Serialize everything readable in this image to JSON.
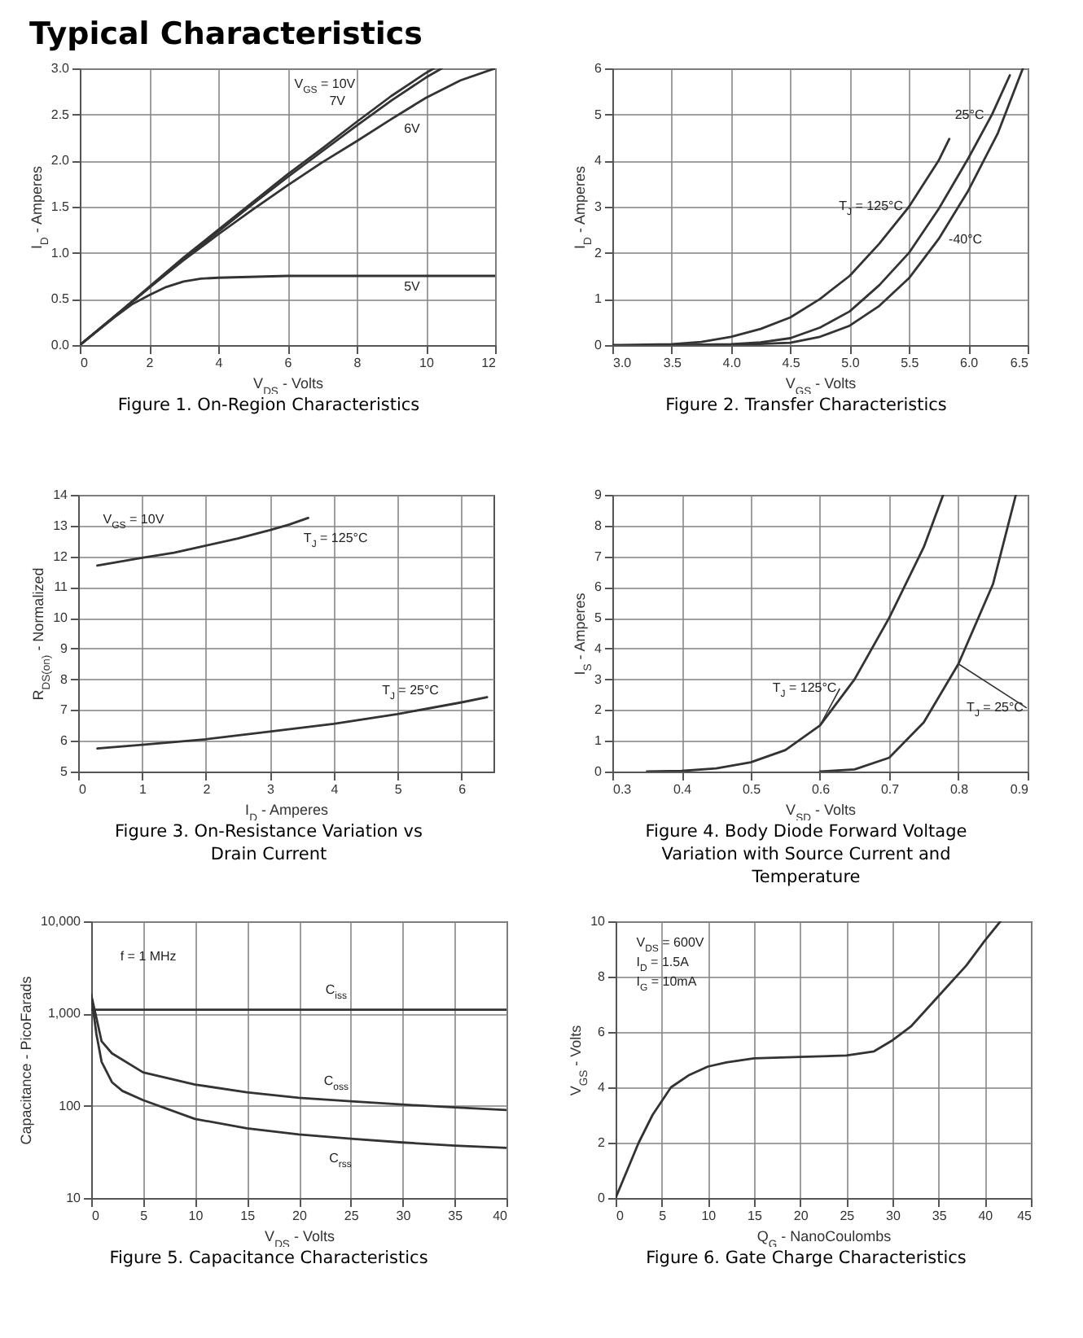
{
  "chart_data": [
    {
      "type": "line",
      "title": "Figure 1. On-Region Characteristics",
      "annotations": [
        "Typical Characteristics"
      ],
      "xlabel": "V$_{DS}$ - Volts",
      "ylabel": "I$_{D}$ - Amperes",
      "xlim": [
        0,
        12
      ],
      "ylim": [
        0,
        3
      ],
      "xticks": [
        0,
        2,
        4,
        6,
        8,
        10,
        12
      ],
      "yticks": [
        {
          "value": 0,
          "label": "0.0"
        },
        0.5,
        {
          "value": 1,
          "label": "1.0"
        },
        1.5,
        {
          "value": 2,
          "label": "2.0"
        },
        2.5,
        {
          "value": 3,
          "label": "3.0"
        }
      ],
      "grid": true,
      "series": [
        {
          "name": "V$_{GS}$ = 10V",
          "color": "#333333",
          "x": [
            0,
            1,
            2,
            3,
            4,
            5,
            6,
            7,
            8,
            9,
            10,
            10.23
          ],
          "values": [
            0,
            0.31,
            0.63,
            0.95,
            1.25,
            1.55,
            1.85,
            2.13,
            2.42,
            2.7,
            2.95,
            3.0
          ]
        },
        {
          "name": "7V",
          "color": "#333333",
          "x": [
            0,
            1,
            2,
            3,
            4,
            5,
            6,
            7,
            8,
            9,
            10,
            10.46
          ],
          "values": [
            0,
            0.31,
            0.62,
            0.93,
            1.23,
            1.53,
            1.82,
            2.1,
            2.38,
            2.65,
            2.9,
            3.0
          ]
        },
        {
          "name": "6V",
          "color": "#333333",
          "x": [
            0,
            1,
            2,
            3,
            4,
            5,
            6,
            7,
            8,
            9,
            10,
            11,
            12
          ],
          "values": [
            0,
            0.31,
            0.62,
            0.92,
            1.2,
            1.47,
            1.73,
            1.98,
            2.21,
            2.45,
            2.68,
            2.87,
            3.0
          ]
        },
        {
          "name": "5V",
          "color": "#333333",
          "x": [
            0,
            1,
            1.5,
            2,
            2.5,
            3,
            3.5,
            4,
            6,
            12
          ],
          "values": [
            0,
            0.3,
            0.44,
            0.54,
            0.63,
            0.69,
            0.72,
            0.73,
            0.75,
            0.75
          ]
        }
      ]
    },
    {
      "type": "line",
      "title": "Figure 2. Transfer Characteristics",
      "xlabel": "V$_{GS}$ - Volts",
      "ylabel": "I$_{D}$ - Amperes",
      "xlim": [
        3,
        6.5
      ],
      "ylim": [
        0,
        6
      ],
      "xticks": [
        {
          "value": 3,
          "label": "3.0"
        },
        3.5,
        {
          "value": 4,
          "label": "4.0"
        },
        4.5,
        {
          "value": 5,
          "label": "5.0"
        },
        5.5,
        {
          "value": 6,
          "label": "6.0"
        },
        6.5
      ],
      "yticks": [
        0,
        1,
        2,
        3,
        4,
        5,
        6
      ],
      "grid": true,
      "series": [
        {
          "name": "T$_{J}$ = 125°C",
          "color": "#333333",
          "x": [
            3,
            3.5,
            3.75,
            4,
            4.25,
            4.5,
            4.75,
            5,
            5.25,
            5.5,
            5.75,
            5.84
          ],
          "values": [
            0,
            0.02,
            0.07,
            0.18,
            0.35,
            0.6,
            1.0,
            1.5,
            2.2,
            3.0,
            4.0,
            4.47
          ]
        },
        {
          "name": "25°C",
          "color": "#333333",
          "x": [
            3.5,
            4,
            4.25,
            4.5,
            4.75,
            5,
            5.25,
            5.5,
            5.75,
            6,
            6.2,
            6.35
          ],
          "values": [
            0,
            0.02,
            0.06,
            0.15,
            0.38,
            0.73,
            1.3,
            2.0,
            2.95,
            4.05,
            5.0,
            5.85
          ]
        },
        {
          "name": "-40°C",
          "color": "#333333",
          "x": [
            4,
            4.5,
            4.75,
            5,
            5.25,
            5.5,
            5.75,
            6,
            6.25,
            6.46
          ],
          "values": [
            0,
            0.05,
            0.18,
            0.42,
            0.85,
            1.45,
            2.3,
            3.35,
            4.6,
            6.0
          ]
        }
      ]
    },
    {
      "type": "line",
      "title": "Figure 3. On-Resistance Variation vs Drain Current",
      "annotations": [
        "V$_{GS}$ = 10V"
      ],
      "xlabel": "I$_{D}$ - Amperes",
      "ylabel": "R$_{DS(on)}$ - Normalized",
      "xlim": [
        0,
        6.5
      ],
      "ylim": [
        5,
        14
      ],
      "xticks": [
        0,
        1,
        2,
        3,
        4,
        5,
        6
      ],
      "yticks": [
        5,
        6,
        7,
        8,
        9,
        10,
        11,
        12,
        13,
        14
      ],
      "grid": true,
      "series": [
        {
          "name": "T$_{J}$ = 125°C",
          "color": "#333333",
          "x": [
            0.3,
            1,
            1.5,
            2,
            2.5,
            3,
            3.3,
            3.6
          ],
          "values": [
            11.7,
            11.95,
            12.12,
            12.35,
            12.58,
            12.85,
            13.03,
            13.25
          ]
        },
        {
          "name": "T$_{J}$ = 25°C",
          "color": "#333333",
          "x": [
            0.3,
            1,
            2,
            3,
            4,
            5,
            6,
            6.4
          ],
          "values": [
            5.75,
            5.87,
            6.05,
            6.3,
            6.55,
            6.87,
            7.25,
            7.42
          ]
        }
      ]
    },
    {
      "type": "line",
      "title": "Figure 4. Body Diode Forward Voltage Variation with Source Current and Temperature",
      "xlabel": "V$_{SD}$ - Volts",
      "ylabel": "I$_{S}$ - Amperes",
      "xlim": [
        0.3,
        0.9
      ],
      "ylim": [
        0,
        9
      ],
      "xticks": [
        0.3,
        0.4,
        0.5,
        0.6,
        0.7,
        0.8,
        0.9
      ],
      "yticks": [
        0,
        1,
        2,
        3,
        4,
        5,
        6,
        7,
        8,
        9
      ],
      "grid": true,
      "series": [
        {
          "name": "T$_{J}$ = 125°C",
          "color": "#333333",
          "x": [
            0.35,
            0.4,
            0.45,
            0.5,
            0.55,
            0.6,
            0.65,
            0.7,
            0.75,
            0.778
          ],
          "values": [
            0,
            0.02,
            0.1,
            0.3,
            0.7,
            1.5,
            3.0,
            5.0,
            7.3,
            9
          ]
        },
        {
          "name": "T$_{J}$ = 25°C",
          "color": "#333333",
          "x": [
            0.6,
            0.65,
            0.7,
            0.75,
            0.8,
            0.85,
            0.883
          ],
          "values": [
            0,
            0.07,
            0.45,
            1.6,
            3.5,
            6.1,
            9
          ]
        }
      ]
    },
    {
      "type": "line",
      "title": "Figure 5. Capacitance Characteristics",
      "annotations": [
        "f = 1 MHz"
      ],
      "xlabel": "V$_{DS}$ - Volts",
      "ylabel": "Capacitance - PicoFarads",
      "log": true,
      "xlim": [
        0,
        40
      ],
      "ylim": [
        10,
        10000
      ],
      "xticks": [
        0,
        5,
        10,
        15,
        20,
        25,
        30,
        35,
        40
      ],
      "yticks": [
        10,
        100,
        {
          "value": 1000,
          "label": "1,000"
        },
        {
          "value": 10000,
          "label": "10,000"
        }
      ],
      "grid": true,
      "series": [
        {
          "name": "C$_{iss}$",
          "color": "#333333",
          "x": [
            0,
            40
          ],
          "values": [
            1100,
            1100
          ]
        },
        {
          "name": "C$_{oss}$",
          "color": "#333333",
          "x": [
            0,
            0.5,
            1,
            2,
            5,
            10,
            15,
            20,
            25,
            30,
            35,
            40
          ],
          "values": [
            1600,
            900,
            500,
            370,
            230,
            170,
            140,
            122,
            112,
            103,
            96,
            90
          ]
        },
        {
          "name": "C$_{rss}$",
          "color": "#333333",
          "x": [
            0,
            0.5,
            1,
            2,
            3,
            5,
            10,
            15,
            20,
            25,
            30,
            35,
            40
          ],
          "values": [
            1600,
            600,
            300,
            180,
            145,
            115,
            72,
            57,
            49,
            44,
            40,
            37,
            35
          ]
        }
      ]
    },
    {
      "type": "line",
      "title": "Figure 6. Gate Charge Characteristics",
      "annotations": [
        "V$_{DS}$ = 600V",
        "I$_{D}$ = 1.5A",
        "I$_{G}$ = 10mA"
      ],
      "xlabel": "Q$_{G}$ - NanoCoulombs",
      "ylabel": "V$_{GS}$ - Volts",
      "xlim": [
        0,
        45
      ],
      "ylim": [
        0,
        10
      ],
      "xticks": [
        0,
        5,
        10,
        15,
        20,
        25,
        30,
        35,
        40,
        45
      ],
      "yticks": [
        0,
        2,
        4,
        6,
        8,
        10
      ],
      "grid": true,
      "series": [
        {
          "color": "#333333",
          "x": [
            0,
            2.5,
            4,
            5,
            6,
            8,
            10,
            12,
            15,
            20,
            25,
            28,
            30,
            32,
            35,
            38,
            40,
            41.7
          ],
          "values": [
            0,
            2.0,
            3.0,
            3.5,
            4.0,
            4.45,
            4.75,
            4.9,
            5.05,
            5.1,
            5.15,
            5.3,
            5.7,
            6.2,
            7.3,
            8.4,
            9.3,
            10
          ]
        }
      ]
    }
  ]
}
